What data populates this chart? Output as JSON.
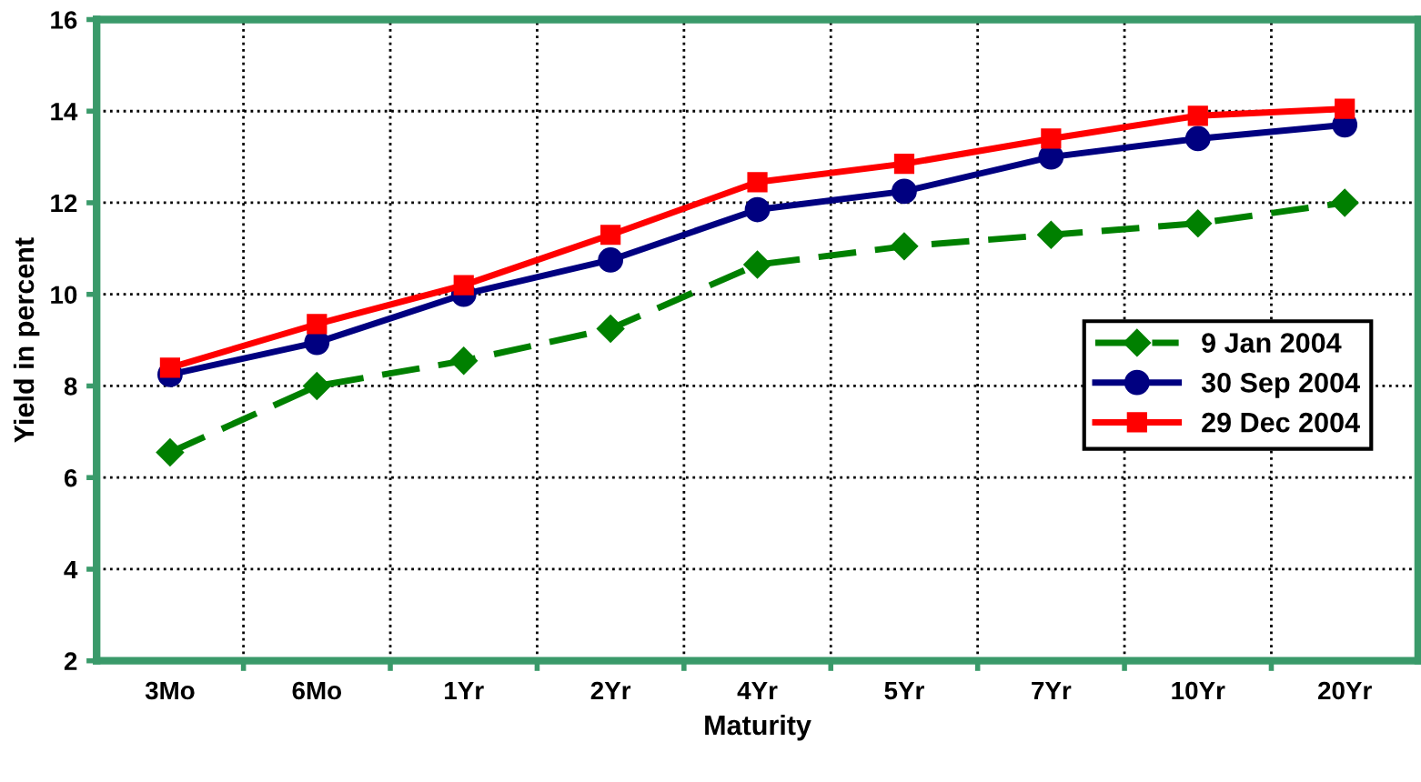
{
  "chart_data": {
    "type": "line",
    "xlabel": "Maturity",
    "ylabel": "Yield in percent",
    "categories": [
      "3Mo",
      "6Mo",
      "1Yr",
      "2Yr",
      "4Yr",
      "5Yr",
      "7Yr",
      "10Yr",
      "20Yr"
    ],
    "series": [
      {
        "name": "9 Jan 2004",
        "color": "#008000",
        "marker": "diamond",
        "line_style": "dashed",
        "values": [
          6.55,
          8.0,
          8.55,
          9.25,
          10.65,
          11.05,
          11.3,
          11.55,
          12.0
        ]
      },
      {
        "name": "30 Sep 2004",
        "color": "#000080",
        "marker": "circle",
        "line_style": "solid",
        "values": [
          8.25,
          8.95,
          10.0,
          10.75,
          11.85,
          12.25,
          13.0,
          13.4,
          13.7
        ]
      },
      {
        "name": "29 Dec 2004",
        "color": "#ff0000",
        "marker": "square",
        "line_style": "solid",
        "values": [
          8.4,
          9.35,
          10.2,
          11.3,
          12.45,
          12.85,
          13.4,
          13.9,
          14.05
        ]
      }
    ],
    "ylim": [
      2,
      16
    ],
    "yticks": [
      2,
      4,
      6,
      8,
      10,
      12,
      14,
      16
    ],
    "grid": true,
    "legend": "right"
  }
}
